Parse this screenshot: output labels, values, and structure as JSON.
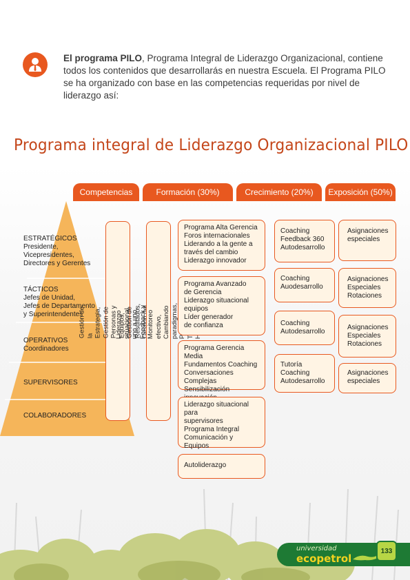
{
  "intro": {
    "bold": "El programa PILO",
    "text": ", Programa Integral de Liderazgo Organizacional, contiene todos los contenidos que desarrollarás en nuestra Escuela. El Programa PILO se ha organizado con base en las competencias requeridas por nivel de liderazgo así:",
    "icon": "person-icon"
  },
  "title": "Programa integral de Liderazgo Organizacional PILO",
  "tabs": [
    "Competencias",
    "Formación (30%)",
    "Crecimiento (20%)",
    "Exposición (50%)"
  ],
  "levels": [
    {
      "title": "ESTRATÉGICOS",
      "detail": "Presidente,\nVicepresidentes,\nDirectores y Gerentes"
    },
    {
      "title": "TÁCTICOS",
      "detail": "Jefes de Unidad,\nJefes de Departamento\ny Superintendentes"
    },
    {
      "title": "OPERATIVOS",
      "detail": "Coordinadores"
    },
    {
      "title": "SUPERVISORES",
      "detail": ""
    },
    {
      "title": "COLABORADORES",
      "detail": ""
    }
  ],
  "competencias_text": "Gestión de la Estrategia, Gestión de Personas y Equipos,\nGestión de Resultados, Gestión del Cambio",
  "formacion_text": "Liderazgo situacional uno a uno, Feedback y Monitoreo efectivo,\nCambiando paradigmas, Procesos Talento Humano",
  "formacion": [
    [
      "Programa Alta Gerencia",
      "Foros internacionales",
      "Liderando a la gente a",
      "través del cambio",
      "Liderazgo innovador"
    ],
    [
      "Programa Avanzado",
      "de Gerencia",
      "Liderazgo situacional",
      "equipos",
      "Líder generador",
      "de confianza"
    ],
    [
      "Programa Gerencia Media",
      "Fundamentos Coaching",
      "Conversaciones Complejas",
      "Sensibilización innovación"
    ],
    [
      "Liderazgo situacional para",
      "supervisores",
      "Programa Integral",
      "Comunicación y Equipos"
    ],
    [
      "Autoliderazgo"
    ]
  ],
  "crecimiento": [
    [
      "Coaching",
      "Feedback  360",
      "Autodesarrollo"
    ],
    [
      "Coaching",
      "Auodesarrollo"
    ],
    [
      "Coaching",
      "Autodesarrollo"
    ],
    [
      "Tutoría",
      "Coaching",
      "Autodesarrollo"
    ]
  ],
  "exposicion": [
    [
      "Asignaciones",
      "especiales"
    ],
    [
      "Asignaciones",
      "Especiales",
      "Rotaciones"
    ],
    [
      "Asignaciones",
      "Especiales",
      "Rotaciones"
    ],
    [
      "Asignaciones",
      "especiales"
    ]
  ],
  "footer": {
    "brand_small": "universidad",
    "brand_big": "ecopetrol",
    "page_number": "133"
  },
  "colors": {
    "accent": "#e8581f",
    "box_fill": "#fff4e4",
    "pyramid": "#f5b55a",
    "brand_green": "#1e7a34"
  }
}
